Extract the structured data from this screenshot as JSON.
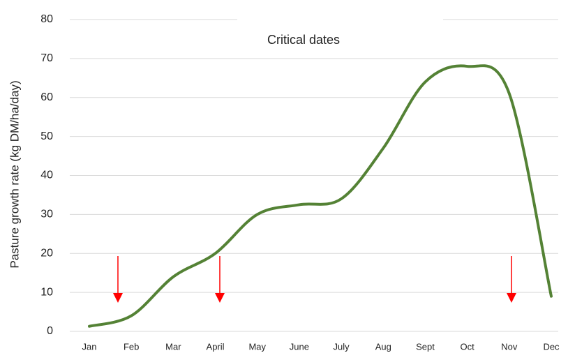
{
  "chart_data": {
    "type": "line",
    "y_label": "Pasture growth rate (kg DM/ha/day)",
    "annotation": "Critical dates",
    "categories": [
      "Jan",
      "Feb",
      "Mar",
      "April",
      "May",
      "June",
      "July",
      "Aug",
      "Sept",
      "Oct",
      "Nov",
      "Dec"
    ],
    "series": [
      {
        "name": "Pasture growth rate",
        "color": "#548235",
        "values": [
          1.3,
          4,
          14,
          20,
          30,
          32.5,
          34,
          47,
          64,
          68,
          61,
          9
        ]
      }
    ],
    "ylim": [
      0,
      80
    ],
    "yticks": [
      0,
      10,
      20,
      30,
      40,
      50,
      60,
      70,
      80
    ],
    "grid": true,
    "annotation_color": "#ff0000"
  }
}
